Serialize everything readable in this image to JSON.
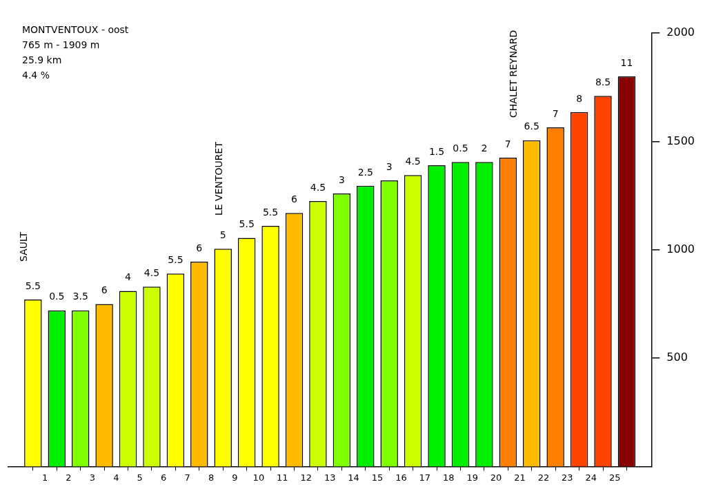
{
  "chart_data": {
    "type": "bar",
    "title": "MONTVENTOUX - oost",
    "annotations": [
      "765 m - 1909 m",
      "25.9 km",
      "4.4 %",
      "SAULT",
      "LE VENTOURET",
      "CHALET REYNARD",
      {
        "text": "5.5",
        "x": 0.5,
        "y": 770
      },
      {
        "text": "0.5",
        "x": 1.5,
        "y": 720
      },
      {
        "text": "3.5",
        "x": 2.5,
        "y": 720
      },
      {
        "text": "6",
        "x": 3.5,
        "y": 750
      },
      {
        "text": "4",
        "x": 4.5,
        "y": 810
      },
      {
        "text": "4.5",
        "x": 5.5,
        "y": 830
      },
      {
        "text": "5.5",
        "x": 6.5,
        "y": 890
      },
      {
        "text": "6",
        "x": 7.5,
        "y": 945
      },
      {
        "text": "5",
        "x": 8.5,
        "y": 1005
      },
      {
        "text": "5.5",
        "x": 9.5,
        "y": 1055
      },
      {
        "text": "5.5",
        "x": 10.5,
        "y": 1110
      },
      {
        "text": "6",
        "x": 11.5,
        "y": 1170
      },
      {
        "text": "4.5",
        "x": 12.5,
        "y": 1225
      },
      {
        "text": "3",
        "x": 13.5,
        "y": 1260
      },
      {
        "text": "2.5",
        "x": 14.5,
        "y": 1295
      },
      {
        "text": "3",
        "x": 15.5,
        "y": 1320
      },
      {
        "text": "4.5",
        "x": 16.5,
        "y": 1345
      },
      {
        "text": "1.5",
        "x": 17.5,
        "y": 1390
      },
      {
        "text": "0.5",
        "x": 18.5,
        "y": 1405
      },
      {
        "text": "2",
        "x": 19.5,
        "y": 1405
      },
      {
        "text": "7",
        "x": 20.5,
        "y": 1425
      },
      {
        "text": "6.5",
        "x": 21.5,
        "y": 1505
      },
      {
        "text": "7",
        "x": 22.5,
        "y": 1565
      },
      {
        "text": "8",
        "x": 23.5,
        "y": 1635
      },
      {
        "text": "8.5",
        "x": 24.5,
        "y": 1710
      },
      {
        "text": "11",
        "x": 25.5,
        "y": 1800
      }
    ],
    "x": [
      0.5,
      1.5,
      2.5,
      3.5,
      4.5,
      5.5,
      6.5,
      7.5,
      8.5,
      9.5,
      10.5,
      11.5,
      12.5,
      13.5,
      14.5,
      15.5,
      16.5,
      17.5,
      18.5,
      19.5,
      20.5,
      21.5,
      22.5,
      23.5,
      24.5,
      25.5
    ],
    "values": [
      770,
      720,
      720,
      750,
      810,
      830,
      890,
      945,
      1005,
      1055,
      1110,
      1170,
      1225,
      1260,
      1295,
      1320,
      1345,
      1390,
      1405,
      1405,
      1425,
      1505,
      1565,
      1635,
      1710,
      1800
    ],
    "colors": [
      "#ffff00",
      "#00ee00",
      "#80ff00",
      "#ffbb00",
      "#ccff00",
      "#ccff00",
      "#ffff00",
      "#ffbb00",
      "#ffff00",
      "#ffff00",
      "#ffff00",
      "#ffbb00",
      "#ccff00",
      "#80ff00",
      "#00ee00",
      "#80ff00",
      "#ccff00",
      "#00ee00",
      "#00ee00",
      "#00ee00",
      "#ff8000",
      "#ffbb00",
      "#ff8000",
      "#ff4400",
      "#ff4400",
      "#880000"
    ],
    "xlim": [
      0,
      26
    ],
    "xticks": [
      1,
      2,
      3,
      4,
      5,
      6,
      7,
      8,
      9,
      10,
      11,
      12,
      13,
      14,
      15,
      16,
      17,
      18,
      19,
      20,
      21,
      22,
      23,
      24,
      25
    ],
    "ylim": [
      0,
      2000
    ],
    "yticks": [
      500,
      1000,
      1500,
      2000
    ],
    "grid": false,
    "legend": false
  }
}
